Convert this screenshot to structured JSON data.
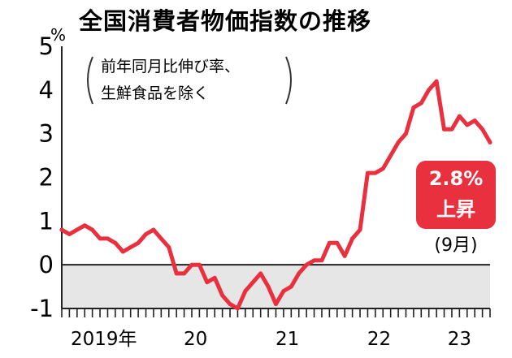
{
  "chart_data": {
    "type": "line",
    "title": "全国消費者物価指数の推移",
    "subtitle_lines": [
      "前年同月比伸び率、",
      "生鮮食品を除く"
    ],
    "ylabel": "%",
    "ylim": [
      -1,
      5
    ],
    "yticks": [
      "5",
      "4",
      "3",
      "2",
      "1",
      "0",
      "-1"
    ],
    "xlim": [
      0,
      56
    ],
    "x_tick_labels": [
      {
        "label": "2019年",
        "x": 5.5
      },
      {
        "label": "20",
        "x": 17.5
      },
      {
        "label": "21",
        "x": 29.5
      },
      {
        "label": "22",
        "x": 41.5
      },
      {
        "label": "23",
        "x": 52
      }
    ],
    "grid": false,
    "line_color": "#e8303f",
    "negative_band_color": "#e6e6e6",
    "series": [
      {
        "name": "",
        "x": [
          0,
          1,
          2,
          3,
          4,
          5,
          6,
          7,
          8,
          9,
          10,
          11,
          12,
          13,
          14,
          15,
          16,
          17,
          18,
          19,
          20,
          21,
          22,
          23,
          24,
          25,
          26,
          27,
          28,
          29,
          30,
          31,
          32,
          33,
          34,
          35,
          36,
          37,
          38,
          39,
          40,
          41,
          42,
          43,
          44,
          45,
          46,
          47,
          48,
          49,
          50,
          51,
          52,
          53,
          54,
          55,
          56
        ],
        "values": [
          0.8,
          0.7,
          0.8,
          0.9,
          0.8,
          0.6,
          0.6,
          0.5,
          0.3,
          0.4,
          0.5,
          0.7,
          0.8,
          0.6,
          0.4,
          -0.2,
          -0.2,
          0.0,
          0.0,
          -0.4,
          -0.3,
          -0.7,
          -0.9,
          -1.0,
          -0.6,
          -0.4,
          -0.2,
          -0.5,
          -0.9,
          -0.6,
          -0.5,
          -0.2,
          0.0,
          0.1,
          0.1,
          0.5,
          0.5,
          0.2,
          0.6,
          0.8,
          2.1,
          2.1,
          2.2,
          2.5,
          2.8,
          3.0,
          3.6,
          3.7,
          4.0,
          4.2,
          3.1,
          3.1,
          3.4,
          3.2,
          3.3,
          3.1,
          2.8
        ]
      }
    ],
    "callout": {
      "value": "2.8%",
      "label": "上昇",
      "note": "(9月)"
    }
  }
}
